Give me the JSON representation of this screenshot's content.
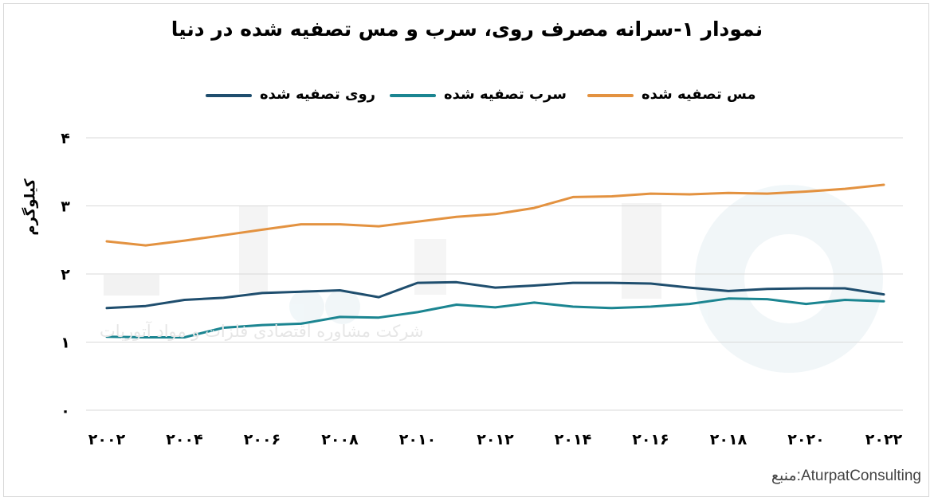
{
  "title": "نمودار ۱-سرانه مصرف روی، سرب و مس تصفیه شده در دنیا",
  "source": "منبع:AturpatConsulting",
  "watermark_text": "شرکت مشاوره اقتصادی فلزات و مواد آتورپات",
  "chart_data": {
    "type": "line",
    "title": "نمودار ۱-سرانه مصرف روی، سرب و مس تصفیه شده در دنیا",
    "xlabel": "",
    "ylabel": "کیلوگرم",
    "x": [
      2002,
      2003,
      2004,
      2005,
      2006,
      2007,
      2008,
      2009,
      2010,
      2011,
      2012,
      2013,
      2014,
      2015,
      2016,
      2017,
      2018,
      2019,
      2020,
      2021,
      2022
    ],
    "x_tick_labels": [
      "۲۰۰۲",
      "۲۰۰۴",
      "۲۰۰۶",
      "۲۰۰۸",
      "۲۰۱۰",
      "۲۰۱۲",
      "۲۰۱۴",
      "۲۰۱۶",
      "۲۰۱۸",
      "۲۰۲۰",
      "۲۰۲۲"
    ],
    "x_tick_values": [
      2002,
      2004,
      2006,
      2008,
      2010,
      2012,
      2014,
      2016,
      2018,
      2020,
      2022
    ],
    "y_tick_labels": [
      "۰",
      "۱",
      "۲",
      "۳",
      "۴"
    ],
    "y_tick_values": [
      0,
      1,
      2,
      3,
      4
    ],
    "ylim": [
      0,
      4
    ],
    "grid": true,
    "legend_position": "top",
    "series": [
      {
        "name": "روی تصفیه شده",
        "color": "#1f4e6e",
        "values": [
          1.5,
          1.53,
          1.62,
          1.65,
          1.72,
          1.74,
          1.76,
          1.66,
          1.87,
          1.88,
          1.8,
          1.83,
          1.87,
          1.87,
          1.86,
          1.8,
          1.75,
          1.78,
          1.79,
          1.79,
          1.7
        ]
      },
      {
        "name": "سرب تصفیه شده",
        "color": "#1b8591",
        "values": [
          1.08,
          1.07,
          1.07,
          1.21,
          1.25,
          1.27,
          1.37,
          1.36,
          1.44,
          1.55,
          1.51,
          1.58,
          1.52,
          1.5,
          1.52,
          1.56,
          1.64,
          1.63,
          1.56,
          1.62,
          1.6
        ]
      },
      {
        "name": "مس تصفیه شده",
        "color": "#e39240",
        "values": [
          2.48,
          2.42,
          2.49,
          2.57,
          2.65,
          2.73,
          2.73,
          2.7,
          2.77,
          2.84,
          2.88,
          2.97,
          3.13,
          3.14,
          3.18,
          3.17,
          3.19,
          3.18,
          3.21,
          3.25,
          3.31
        ]
      }
    ]
  }
}
